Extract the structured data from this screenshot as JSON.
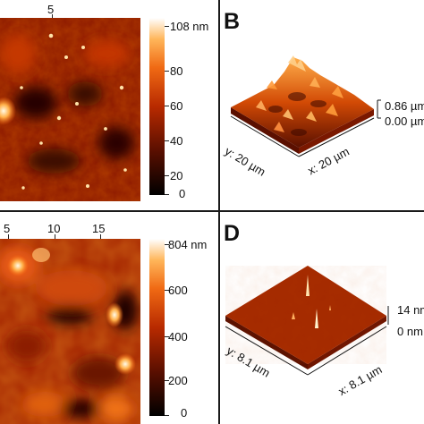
{
  "panel_a": {
    "top_axis_ticks": [
      "5"
    ],
    "colorbar_unit_label": "108 nm",
    "colorbar_ticks": [
      "80",
      "60",
      "40",
      "20",
      "0"
    ]
  },
  "panel_b": {
    "letter": "B",
    "z_top_label": "0.86 µm",
    "z_bottom_label": "0.00 µm",
    "y_axis_label": "y: 20 µm",
    "x_axis_label": "x: 20 µm"
  },
  "panel_c": {
    "top_axis_ticks": [
      "5",
      "10",
      "15"
    ],
    "colorbar_unit_label": "804 nm",
    "colorbar_ticks": [
      "600",
      "400",
      "200",
      "0"
    ]
  },
  "panel_d": {
    "letter": "D",
    "z_top_label": "14 nm",
    "z_bottom_label": "0 nm",
    "y_axis_label": "y: 8.1 µm",
    "x_axis_label": "x: 8.1 µm"
  },
  "colors": {
    "heatmap_dark": "#1a0500",
    "heatmap_mid": "#b82a00",
    "heatmap_bright": "#ff8a1e",
    "heatmap_white": "#fffbe8",
    "divider": "#1a1a1a"
  }
}
